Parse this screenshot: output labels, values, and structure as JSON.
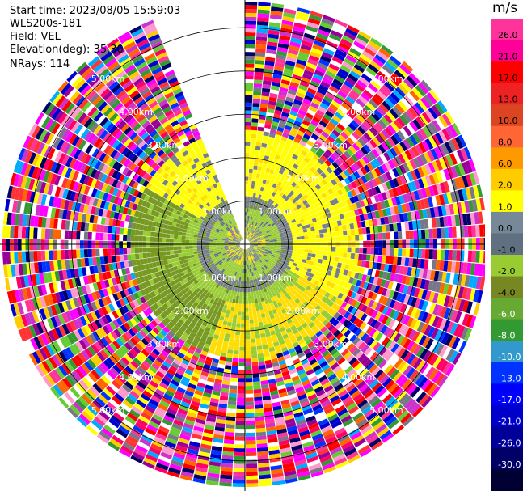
{
  "header": {
    "start_time": "Start time: 2023/08/05 15:59:03",
    "instrument": "WLS200s-181",
    "field": "Field: VEL",
    "elevation": "Elevation(deg): 35.30",
    "nrays": "NRays: 114"
  },
  "chart_data": {
    "type": "heatmap",
    "projection": "polar PPI",
    "field": "VEL",
    "units": "m/s",
    "range_rings_km": [
      1.0,
      2.0,
      3.0,
      4.0,
      5.0
    ],
    "ring_labels": [
      "1.00km",
      "2.00km",
      "3.00km",
      "4.00km",
      "5.00km"
    ],
    "max_range_km": 5.6,
    "missing_sector_deg": [
      -22,
      0
    ],
    "colorbar": {
      "title": "m/s",
      "tick_labels": [
        "26.0",
        "21.0",
        "17.0",
        "13.0",
        "10.0",
        "8.0",
        "6.0",
        "2.0",
        "1.0",
        "0.0",
        "-1.0",
        "-2.0",
        "-4.0",
        "-6.0",
        "-8.0",
        "-10.0",
        "-13.0",
        "-17.0",
        "-21.0",
        "-26.0",
        "-30.0"
      ],
      "colors": [
        "#ff3399",
        "#ff0099",
        "#ff0000",
        "#ee2222",
        "#dd4422",
        "#ff6633",
        "#ff9900",
        "#ffcc00",
        "#ffff00",
        "#778899",
        "#607080",
        "#99cc33",
        "#778822",
        "#66aa33",
        "#339933",
        "#3399cc",
        "#0033ff",
        "#0000ff",
        "#0000cc",
        "#000099",
        "#000066",
        "#000033"
      ]
    },
    "velocity_structure": [
      {
        "from_km": 0.0,
        "to_km": 0.45,
        "desc": "gray/green mixed"
      },
      {
        "from_km": 0.45,
        "to_km": 0.8,
        "desc": "green ring"
      },
      {
        "from_km": 0.8,
        "to_km": 1.05,
        "desc": "gray ring"
      },
      {
        "from_km": 1.05,
        "to_km": 1.3,
        "desc": "north yellow / south green"
      },
      {
        "from_km": 1.3,
        "to_km": 2.6,
        "desc": "north yellow+gray, south green"
      },
      {
        "from_km": 2.6,
        "to_km": 5.6,
        "desc": "noise, random colors"
      }
    ]
  }
}
